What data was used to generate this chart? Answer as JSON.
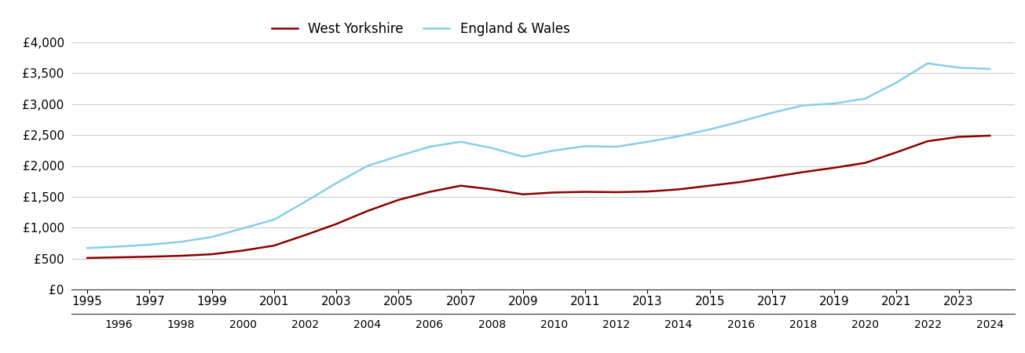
{
  "years": [
    1995,
    1996,
    1997,
    1998,
    1999,
    2000,
    2001,
    2002,
    2003,
    2004,
    2005,
    2006,
    2007,
    2008,
    2009,
    2010,
    2011,
    2012,
    2013,
    2014,
    2015,
    2016,
    2017,
    2018,
    2019,
    2020,
    2021,
    2022,
    2023,
    2024
  ],
  "west_yorkshire": [
    510,
    520,
    530,
    545,
    570,
    630,
    710,
    880,
    1060,
    1270,
    1450,
    1580,
    1680,
    1620,
    1540,
    1570,
    1580,
    1575,
    1585,
    1620,
    1680,
    1740,
    1820,
    1900,
    1970,
    2050,
    2220,
    2400,
    2470,
    2490
  ],
  "england_wales": [
    670,
    695,
    725,
    770,
    850,
    990,
    1130,
    1420,
    1720,
    2000,
    2160,
    2310,
    2390,
    2290,
    2150,
    2250,
    2320,
    2310,
    2390,
    2480,
    2590,
    2720,
    2860,
    2980,
    3010,
    3090,
    3350,
    3660,
    3590,
    3570
  ],
  "wy_color": "#8B0000",
  "ew_color": "#87CEEB",
  "line_width": 1.8,
  "ylim": [
    0,
    4000
  ],
  "yticks": [
    0,
    500,
    1000,
    1500,
    2000,
    2500,
    3000,
    3500,
    4000
  ],
  "ytick_labels": [
    "£0",
    "£500",
    "£1,000",
    "£1,500",
    "£2,000",
    "£2,500",
    "£3,000",
    "£3,500",
    "£4,000"
  ],
  "wy_label": "West Yorkshire",
  "ew_label": "England & Wales",
  "background_color": "#ffffff",
  "grid_color": "#cccccc",
  "tick_fontsize": 11,
  "legend_fontsize": 12
}
